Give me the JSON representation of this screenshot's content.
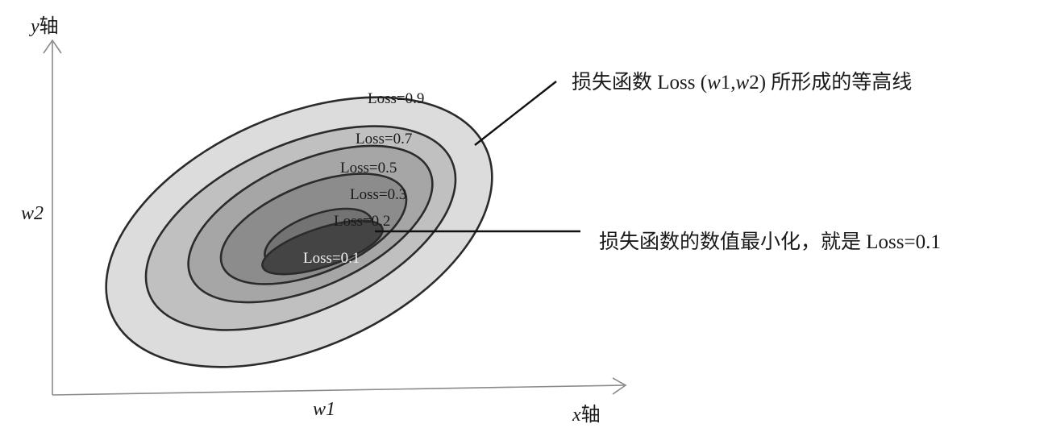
{
  "axes": {
    "y_axis_label": {
      "var": "y",
      "suffix": "轴"
    },
    "x_axis_label": {
      "var": "x",
      "suffix": "轴"
    },
    "y_param_label": "w2",
    "x_param_label": "w1"
  },
  "contours": [
    {
      "label": "Loss=0.9",
      "fill": "#dcdcdc"
    },
    {
      "label": "Loss=0.7",
      "fill": "#c0c0c0"
    },
    {
      "label": "Loss=0.5",
      "fill": "#a6a6a6"
    },
    {
      "label": "Loss=0.3",
      "fill": "#8c8c8c"
    },
    {
      "label": "Loss=0.2",
      "fill": "#737373"
    },
    {
      "label": "Loss=0.1",
      "fill": "#444444"
    }
  ],
  "annotations": {
    "contour_note": {
      "prefix": "损失函数 Loss (",
      "var1": "w",
      "mid1": "1,",
      "var2": "w",
      "mid2": "2) 所形成的等高线"
    },
    "minimum_note": "损失函数的数值最小化，就是 Loss=0.1"
  },
  "colors": {
    "axis": "#8a8a8a",
    "outline": "#2b2b2b",
    "text": "#1a1a1a"
  }
}
